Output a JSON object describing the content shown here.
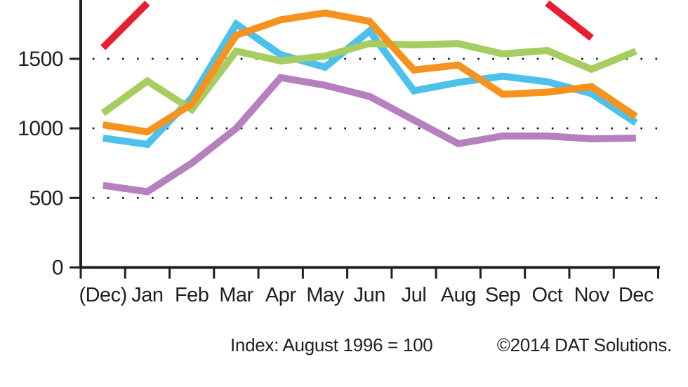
{
  "chart_data": {
    "type": "line",
    "title": "",
    "xlabel": "",
    "ylabel": "",
    "categories": [
      "(Dec)",
      "Jan",
      "Feb",
      "Mar",
      "Apr",
      "May",
      "Jun",
      "Jul",
      "Aug",
      "Sep",
      "Oct",
      "Nov",
      "Dec"
    ],
    "series": [
      {
        "name": "purple",
        "color": "#b680bf",
        "values": [
          590,
          545,
          750,
          1000,
          1365,
          1310,
          1230,
          1060,
          890,
          945,
          945,
          925,
          930
        ]
      },
      {
        "name": "cyan",
        "color": "#4bc1ec",
        "values": [
          930,
          885,
          1220,
          1750,
          1530,
          1440,
          1700,
          1270,
          1330,
          1375,
          1335,
          1250,
          1040
        ]
      },
      {
        "name": "green",
        "color": "#a5cd61",
        "values": [
          1110,
          1340,
          1135,
          1555,
          1485,
          1520,
          1610,
          1600,
          1610,
          1535,
          1560,
          1425,
          1555
        ]
      },
      {
        "name": "orange",
        "color": "#f6921e",
        "values": [
          1025,
          975,
          1175,
          1670,
          1780,
          1830,
          1770,
          1420,
          1455,
          1245,
          1260,
          1300,
          1085
        ]
      },
      {
        "name": "red",
        "color": "#e91d2c",
        "values": [
          1580,
          1900,
          null,
          null,
          null,
          null,
          null,
          null,
          null,
          null,
          1900,
          1650,
          null
        ],
        "note": "line rises off the cropped top edge after Jan and re-enters before Nov; values above ~1900 are not visible"
      }
    ],
    "ylim": [
      0,
      1920
    ],
    "yticks": [
      0,
      500,
      1000,
      1500
    ],
    "grid": "dotted horizontal gridlines at 500, 1000, 1500",
    "legend": "none visible (top of chart cropped off)",
    "caption_left": "Index: August 1996 = 100",
    "caption_right": "©2014 DAT Solutions."
  },
  "colors": {
    "axis": "#231f20",
    "text": "#231f20",
    "grid_dot": "#111111",
    "background": "#ffffff"
  }
}
